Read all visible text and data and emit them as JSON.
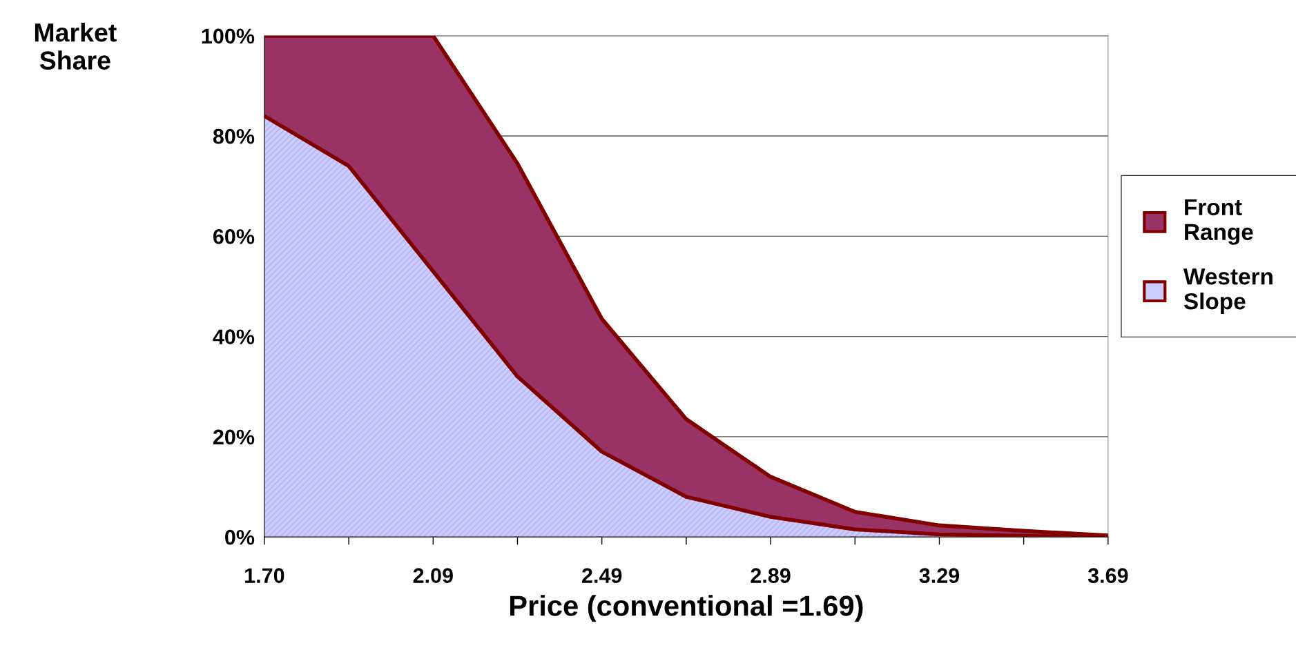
{
  "chart_data": {
    "type": "area",
    "stacked": true,
    "xlabel": "Price (conventional =1.69)",
    "ylabel": "Market Share",
    "categories": [
      "1.70",
      null,
      "2.09",
      null,
      "2.49",
      null,
      "2.89",
      null,
      "3.29",
      null,
      "3.69"
    ],
    "series": [
      {
        "name": "Western Slope",
        "color": "#ccccff",
        "values": [
          84,
          74,
          53,
          32,
          17,
          8,
          4,
          1.5,
          0.5,
          0.2,
          0
        ]
      },
      {
        "name": "Front Range",
        "color": "#993366",
        "values": [
          16,
          26,
          47,
          42.5,
          26.5,
          15.5,
          8,
          3.5,
          1.8,
          1,
          0.3
        ]
      }
    ],
    "ylim": [
      0,
      100
    ],
    "yticks": [
      {
        "value": 0,
        "label": "0%"
      },
      {
        "value": 20,
        "label": "20%"
      },
      {
        "value": 40,
        "label": "40%"
      },
      {
        "value": 60,
        "label": "60%"
      },
      {
        "value": 80,
        "label": "80%"
      },
      {
        "value": 100,
        "label": "100%"
      }
    ],
    "grid": "y",
    "legend": "right"
  }
}
